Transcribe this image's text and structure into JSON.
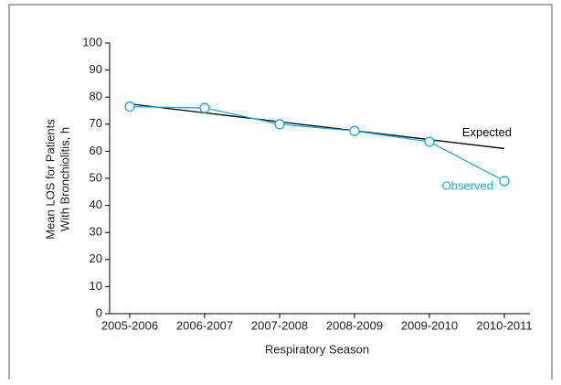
{
  "chart_data": {
    "type": "line",
    "y_label": [
      "Mean LOS for Patients",
      "With Bronchiolitis, h"
    ],
    "x_label": "Respiratory Season",
    "categories": [
      "2005-2006",
      "2006-2007",
      "2007-2008",
      "2008-2009",
      "2009-2010",
      "2010-2011"
    ],
    "series": [
      {
        "name": "Expected",
        "color": "#000000",
        "markers": false,
        "values": [
          77.5,
          74.2,
          70.9,
          67.6,
          64.3,
          61.0
        ]
      },
      {
        "name": "Observed",
        "color": "#1aaed6",
        "markers": true,
        "values": [
          76.5,
          76,
          70,
          67.5,
          63.5,
          49
        ]
      }
    ],
    "ylim": [
      0,
      100
    ],
    "yticks": [
      0,
      10,
      20,
      30,
      40,
      50,
      60,
      70,
      80,
      90,
      100
    ]
  }
}
